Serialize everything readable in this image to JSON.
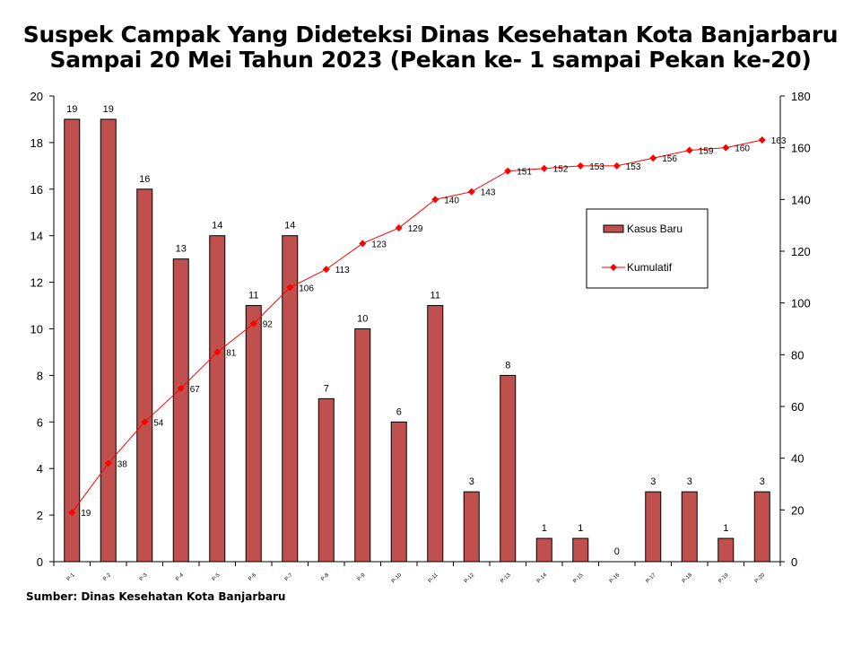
{
  "title_line1": "Suspek Campak Yang Dideteksi Dinas Kesehatan Kota Banjarbaru",
  "title_line2": "Sampai 20 Mei Tahun 2023 (Pekan ke- 1 sampai Pekan ke-20)",
  "source": "Sumber: Dinas Kesehatan Kota Banjarbaru",
  "colors": {
    "bar": "#c0504d",
    "bar_border": "#000000",
    "line": "#ff0000"
  },
  "chart_data": {
    "type": "bar",
    "categories": [
      "P-1",
      "P-2",
      "P-3",
      "P-4",
      "P-5",
      "P-6",
      "P-7",
      "P-8",
      "P-9",
      "P-10",
      "P-11",
      "P-12",
      "P-13",
      "P-14",
      "P-15",
      "P-16",
      "P-17",
      "P-18",
      "P-19",
      "P-20"
    ],
    "series": [
      {
        "name": "Kasus Baru",
        "type": "bar",
        "axis": "left",
        "values": [
          19,
          19,
          16,
          13,
          14,
          11,
          14,
          7,
          10,
          6,
          11,
          3,
          8,
          1,
          1,
          0,
          3,
          3,
          1,
          3
        ]
      },
      {
        "name": "Kumulatif",
        "type": "line",
        "axis": "right",
        "marker": "diamond",
        "values": [
          19,
          38,
          54,
          67,
          81,
          92,
          106,
          113,
          123,
          129,
          140,
          143,
          151,
          152,
          153,
          153,
          156,
          159,
          160,
          163
        ]
      }
    ],
    "y_left": {
      "min": 0,
      "max": 20,
      "step": 2
    },
    "y_right": {
      "min": 0,
      "max": 180,
      "step": 20
    },
    "legend_position": "right-center",
    "grid": false
  }
}
